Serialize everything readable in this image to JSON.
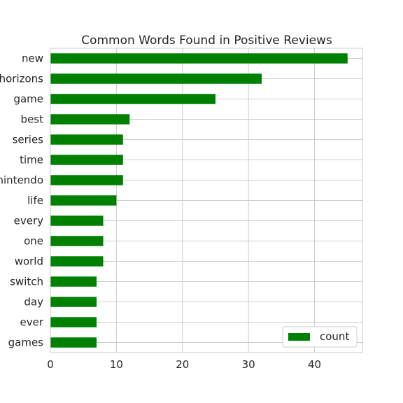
{
  "chart_data": {
    "type": "bar",
    "orientation": "horizontal",
    "title": "Common Words Found in Positive Reviews",
    "xlabel": "",
    "ylabel": "",
    "categories": [
      "new",
      "horizons",
      "game",
      "best",
      "series",
      "time",
      "nintendo",
      "life",
      "every",
      "one",
      "world",
      "switch",
      "day",
      "ever",
      "games"
    ],
    "series": [
      {
        "name": "count",
        "values": [
          45,
          32,
          25,
          12,
          11,
          11,
          11,
          10,
          8,
          8,
          8,
          7,
          7,
          7,
          7
        ]
      }
    ],
    "xlim": [
      0,
      47.25
    ],
    "xticks": [
      0,
      10,
      20,
      30,
      40
    ],
    "bar_color": "#008000",
    "grid": true,
    "legend_position": "lower right"
  }
}
